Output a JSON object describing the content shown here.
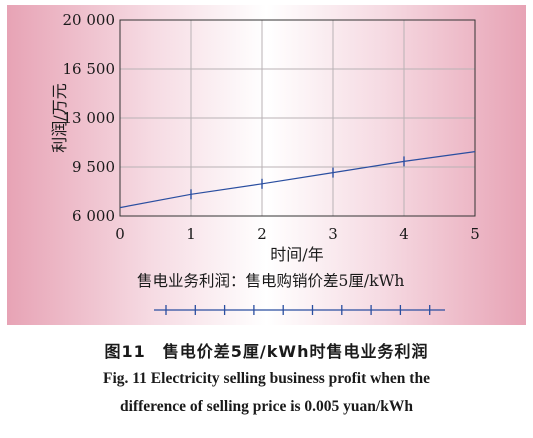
{
  "figure": {
    "caption_cn": "图11　售电价差5厘/kWh时售电业务利润",
    "caption_en_line1": "Fig. 11    Electricity selling business profit when the",
    "caption_en_line2": "difference of selling price is 0.005 yuan/kWh"
  },
  "chart_data": {
    "type": "line",
    "xlabel": "时间/年",
    "ylabel": "利润/万元",
    "x_ticks": [
      "0",
      "1",
      "2",
      "3",
      "4",
      "5"
    ],
    "y_ticks": [
      "6 000",
      "9 500",
      "13 000",
      "16 500",
      "20 000"
    ],
    "xlim": [
      0,
      5
    ],
    "ylim": [
      6000,
      20000
    ],
    "grid": true,
    "legend": {
      "placement": "bottom"
    },
    "series": [
      {
        "name": "售电业务利润：售电购销价差5厘/kWh",
        "color": "#2a4ea0",
        "x": [
          0,
          1,
          2,
          3,
          4,
          5
        ],
        "y": [
          6600,
          7550,
          8300,
          9100,
          9900,
          10600
        ],
        "marked_points": [
          1,
          2,
          3,
          4
        ]
      }
    ]
  }
}
